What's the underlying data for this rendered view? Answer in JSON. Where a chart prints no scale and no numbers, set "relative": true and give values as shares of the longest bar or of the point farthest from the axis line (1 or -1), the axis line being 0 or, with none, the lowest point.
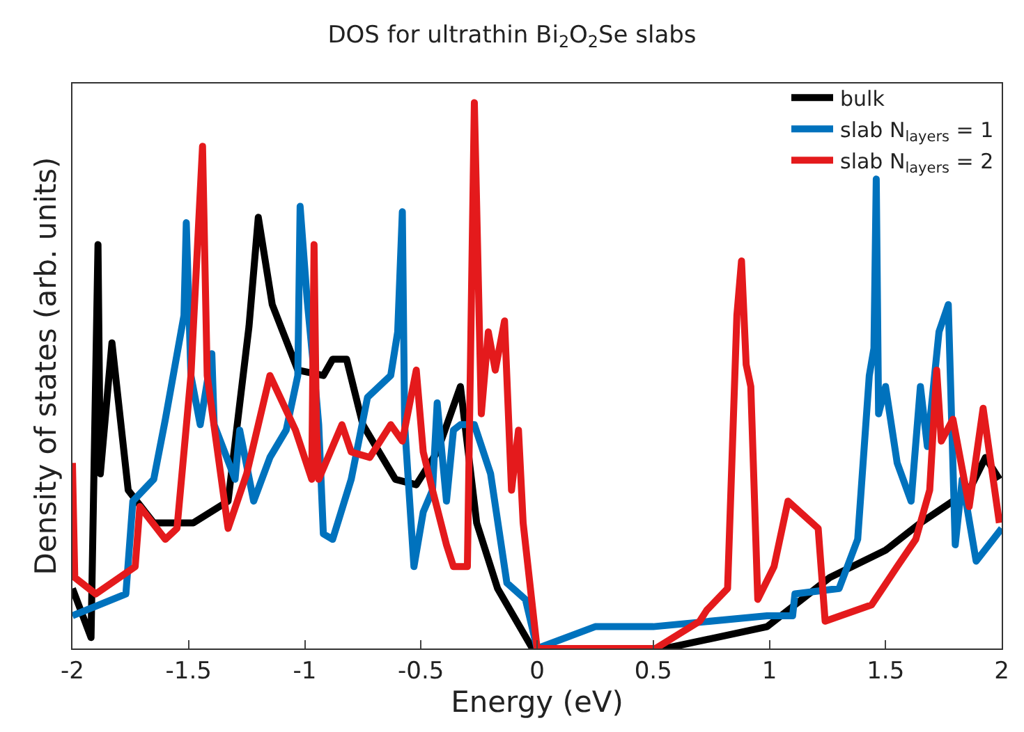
{
  "chart_data": {
    "type": "line",
    "title": "DOS for ultrathin Bi$_{2}$O$_{2}$Se slabs",
    "xlabel": "Energy (eV)",
    "ylabel": "Density of states (arb. units)",
    "relative": true,
    "xlim": [
      -2,
      2
    ],
    "xticks": [
      -2,
      -1.5,
      -1,
      -0.5,
      0,
      0.5,
      1,
      1.5,
      2
    ],
    "legend": "top right",
    "marker": "none",
    "line_style": "solid",
    "series": [
      {
        "name": "bulk",
        "color": "#000000",
        "x": [
          -2,
          -1.92,
          -1.89,
          -1.88,
          -1.83,
          -1.76,
          -1.65,
          -1.48,
          -1.33,
          -1.24,
          -1.2,
          -1.14,
          -1.03,
          -0.92,
          -0.88,
          -0.82,
          -0.75,
          -0.61,
          -0.52,
          -0.43,
          -0.33,
          -0.26,
          -0.17,
          -0.02,
          0.55,
          0.99,
          1.26,
          1.5,
          1.65,
          1.86,
          1.93,
          1.99
        ],
        "values": [
          0.11,
          0.02,
          0.74,
          0.32,
          0.56,
          0.29,
          0.23,
          0.23,
          0.27,
          0.59,
          0.79,
          0.63,
          0.51,
          0.5,
          0.53,
          0.53,
          0.41,
          0.31,
          0.3,
          0.36,
          0.48,
          0.23,
          0.11,
          0,
          0,
          0.04,
          0.13,
          0.18,
          0.23,
          0.29,
          0.35,
          0.31
        ]
      },
      {
        "name": "slab N$_{layers}$ = 1",
        "color": "#0072bd",
        "x": [
          -2,
          -1.77,
          -1.74,
          -1.65,
          -1.6,
          -1.52,
          -1.51,
          -1.49,
          -1.45,
          -1.4,
          -1.39,
          -1.3,
          -1.28,
          -1.22,
          -1.15,
          -1.08,
          -1.03,
          -1.02,
          -0.99,
          -0.95,
          -0.94,
          -0.92,
          -0.88,
          -0.8,
          -0.73,
          -0.63,
          -0.6,
          -0.58,
          -0.57,
          -0.53,
          -0.49,
          -0.45,
          -0.43,
          -0.39,
          -0.36,
          -0.33,
          -0.27,
          -0.2,
          -0.13,
          -0.05,
          0,
          0.25,
          0.5,
          0.99,
          1.1,
          1.11,
          1.3,
          1.38,
          1.43,
          1.45,
          1.46,
          1.47,
          1.5,
          1.55,
          1.61,
          1.65,
          1.68,
          1.73,
          1.77,
          1.8,
          1.83,
          1.89,
          2
        ],
        "values": [
          0.06,
          0.1,
          0.27,
          0.31,
          0.42,
          0.61,
          0.78,
          0.5,
          0.41,
          0.54,
          0.41,
          0.31,
          0.4,
          0.27,
          0.35,
          0.4,
          0.5,
          0.81,
          0.64,
          0.46,
          0.41,
          0.21,
          0.2,
          0.31,
          0.46,
          0.5,
          0.58,
          0.8,
          0.41,
          0.15,
          0.25,
          0.29,
          0.45,
          0.27,
          0.4,
          0.41,
          0.41,
          0.32,
          0.12,
          0.09,
          0,
          0.04,
          0.04,
          0.06,
          0.06,
          0.1,
          0.11,
          0.2,
          0.5,
          0.55,
          0.86,
          0.43,
          0.48,
          0.34,
          0.27,
          0.48,
          0.37,
          0.58,
          0.63,
          0.19,
          0.31,
          0.16,
          0.22
        ]
      },
      {
        "name": "slab N$_{layers}$ = 2",
        "color": "#e41a1c",
        "x": [
          -2,
          -1.99,
          -1.9,
          -1.73,
          -1.71,
          -1.6,
          -1.55,
          -1.49,
          -1.44,
          -1.42,
          -1.33,
          -1.25,
          -1.2,
          -1.15,
          -1.04,
          -0.97,
          -0.96,
          -0.95,
          -0.94,
          -0.84,
          -0.8,
          -0.72,
          -0.63,
          -0.58,
          -0.52,
          -0.49,
          -0.45,
          -0.39,
          -0.36,
          -0.3,
          -0.27,
          -0.24,
          -0.21,
          -0.18,
          -0.14,
          -0.11,
          -0.08,
          -0.06,
          0,
          0.51,
          0.7,
          0.73,
          0.82,
          0.86,
          0.88,
          0.9,
          0.92,
          0.95,
          1.02,
          1.08,
          1.21,
          1.24,
          1.44,
          1.55,
          1.63,
          1.69,
          1.72,
          1.74,
          1.79,
          1.86,
          1.92,
          1.99
        ],
        "values": [
          0.34,
          0.13,
          0.1,
          0.15,
          0.26,
          0.2,
          0.22,
          0.5,
          0.92,
          0.5,
          0.22,
          0.32,
          0.41,
          0.5,
          0.4,
          0.31,
          0.74,
          0.41,
          0.31,
          0.41,
          0.36,
          0.35,
          0.41,
          0.38,
          0.51,
          0.36,
          0.29,
          0.19,
          0.15,
          0.15,
          1,
          0.43,
          0.58,
          0.51,
          0.6,
          0.29,
          0.4,
          0.23,
          0,
          0,
          0.05,
          0.07,
          0.11,
          0.61,
          0.71,
          0.52,
          0.48,
          0.09,
          0.15,
          0.27,
          0.22,
          0.05,
          0.08,
          0.15,
          0.2,
          0.29,
          0.51,
          0.38,
          0.42,
          0.26,
          0.44,
          0.23
        ]
      }
    ]
  }
}
